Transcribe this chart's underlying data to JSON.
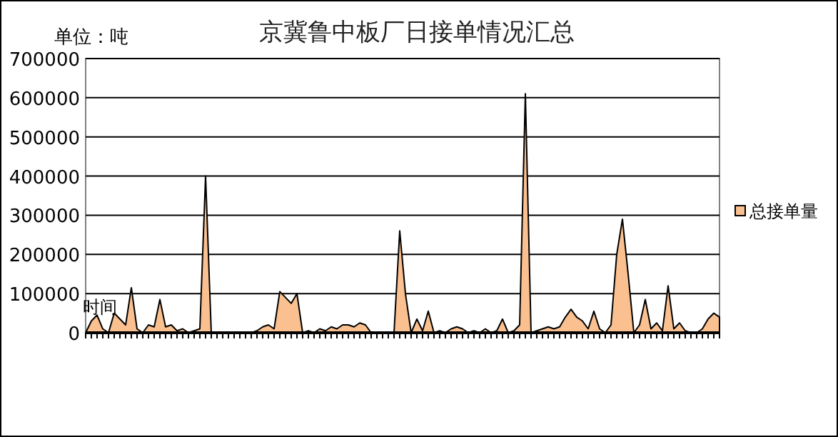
{
  "chart_data": {
    "type": "area",
    "title": "京冀鲁中板厂日接单情况汇总",
    "ylabel": "单位：吨",
    "xlabel": "时间",
    "categories": [
      null,
      null,
      null,
      null,
      null,
      null,
      null,
      null,
      null,
      null,
      null,
      null,
      null,
      null,
      null,
      null,
      null,
      null,
      null,
      null,
      null,
      null,
      null,
      null,
      null,
      null,
      null,
      null,
      null,
      null,
      null,
      null,
      null,
      null,
      null,
      null,
      null,
      null,
      null,
      null,
      null,
      null,
      null,
      null,
      null,
      null,
      null,
      null,
      null,
      null,
      null,
      null,
      null,
      null,
      null,
      null,
      null,
      null,
      null,
      null,
      null,
      null,
      null,
      null,
      null,
      null,
      null,
      null,
      null,
      null,
      null,
      null,
      null,
      null,
      null,
      null,
      null,
      null,
      null,
      null,
      null,
      null,
      null,
      null,
      null,
      null,
      null,
      null,
      null,
      null,
      null,
      null,
      null,
      null,
      null,
      null,
      null,
      null,
      null,
      null,
      null,
      null,
      null,
      null,
      null,
      null,
      null,
      null,
      null,
      null,
      null,
      null
    ],
    "series": [
      {
        "name": "总接单量",
        "color": "#fac090",
        "values": [
          0,
          30000,
          45000,
          10000,
          0,
          50000,
          35000,
          20000,
          115000,
          10000,
          0,
          20000,
          15000,
          85000,
          15000,
          20000,
          5000,
          10000,
          0,
          5000,
          10000,
          400000,
          0,
          0,
          0,
          0,
          0,
          0,
          0,
          0,
          5000,
          15000,
          20000,
          10000,
          105000,
          90000,
          75000,
          100000,
          0,
          5000,
          0,
          10000,
          5000,
          15000,
          10000,
          20000,
          20000,
          15000,
          25000,
          20000,
          0,
          0,
          0,
          0,
          0,
          260000,
          100000,
          0,
          35000,
          5000,
          55000,
          0,
          5000,
          0,
          10000,
          15000,
          10000,
          0,
          5000,
          0,
          10000,
          0,
          5000,
          35000,
          0,
          5000,
          20000,
          610000,
          0,
          5000,
          10000,
          15000,
          10000,
          15000,
          40000,
          60000,
          40000,
          30000,
          10000,
          55000,
          10000,
          0,
          20000,
          200000,
          290000,
          150000,
          0,
          20000,
          85000,
          10000,
          25000,
          5000,
          120000,
          10000,
          25000,
          5000,
          0,
          0,
          10000,
          35000,
          50000,
          40000
        ]
      }
    ],
    "ylim": [
      0,
      700000
    ],
    "yticks": [
      0,
      100000,
      200000,
      300000,
      400000,
      500000,
      600000,
      700000
    ],
    "grid": "y",
    "legend": "right"
  }
}
